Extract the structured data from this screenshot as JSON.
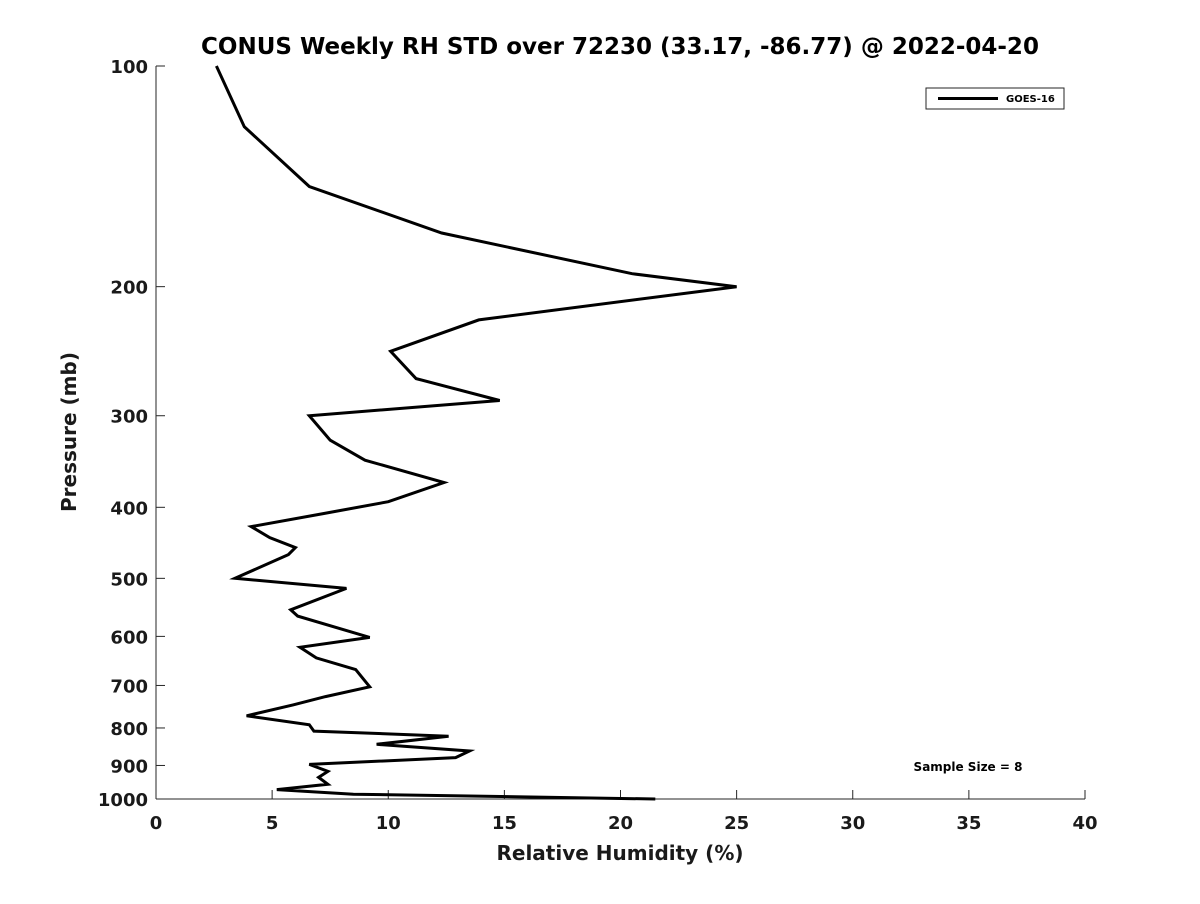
{
  "chart_data": {
    "type": "line",
    "title": "CONUS Weekly RH STD over 72230 (33.17, -86.77) @ 2022-04-20",
    "xlabel": "Relative Humidity (%)",
    "ylabel": "Pressure (mb)",
    "xlim": [
      0,
      40
    ],
    "ylim": [
      1000,
      100
    ],
    "y_scale": "log",
    "y_reversed": true,
    "xticks": [
      0,
      5,
      10,
      15,
      20,
      25,
      30,
      35,
      40
    ],
    "yticks": [
      100,
      200,
      300,
      400,
      500,
      600,
      700,
      800,
      900,
      1000
    ],
    "grid": false,
    "legend": {
      "position": "top-right",
      "entries": [
        "GOES-16"
      ]
    },
    "annotation": "Sample Size = 8",
    "series": [
      {
        "name": "GOES-16",
        "color": "#000000",
        "points": [
          [
            2.6,
            100
          ],
          [
            3.8,
            121
          ],
          [
            6.6,
            146
          ],
          [
            12.3,
            169
          ],
          [
            20.5,
            192
          ],
          [
            25.0,
            200
          ],
          [
            13.9,
            222
          ],
          [
            10.1,
            245
          ],
          [
            11.2,
            267
          ],
          [
            14.8,
            286
          ],
          [
            6.6,
            300
          ],
          [
            7.5,
            324
          ],
          [
            9.0,
            345
          ],
          [
            12.4,
            370
          ],
          [
            10.0,
            393
          ],
          [
            7.2,
            408
          ],
          [
            4.1,
            425
          ],
          [
            4.9,
            440
          ],
          [
            6.0,
            454
          ],
          [
            5.7,
            464
          ],
          [
            3.4,
            500
          ],
          [
            8.2,
            516
          ],
          [
            5.8,
            552
          ],
          [
            6.1,
            563
          ],
          [
            9.2,
            602
          ],
          [
            6.2,
            621
          ],
          [
            6.9,
            642
          ],
          [
            8.6,
            666
          ],
          [
            9.2,
            703
          ],
          [
            7.3,
            725
          ],
          [
            5.9,
            744
          ],
          [
            3.9,
            770
          ],
          [
            6.6,
            792
          ],
          [
            6.8,
            808
          ],
          [
            12.6,
            821
          ],
          [
            9.5,
            842
          ],
          [
            13.5,
            860
          ],
          [
            12.9,
            878
          ],
          [
            6.6,
            897
          ],
          [
            7.4,
            917
          ],
          [
            7.0,
            934
          ],
          [
            7.4,
            955
          ],
          [
            5.2,
            971
          ],
          [
            8.5,
            985
          ],
          [
            21.5,
            1000
          ]
        ]
      }
    ]
  }
}
